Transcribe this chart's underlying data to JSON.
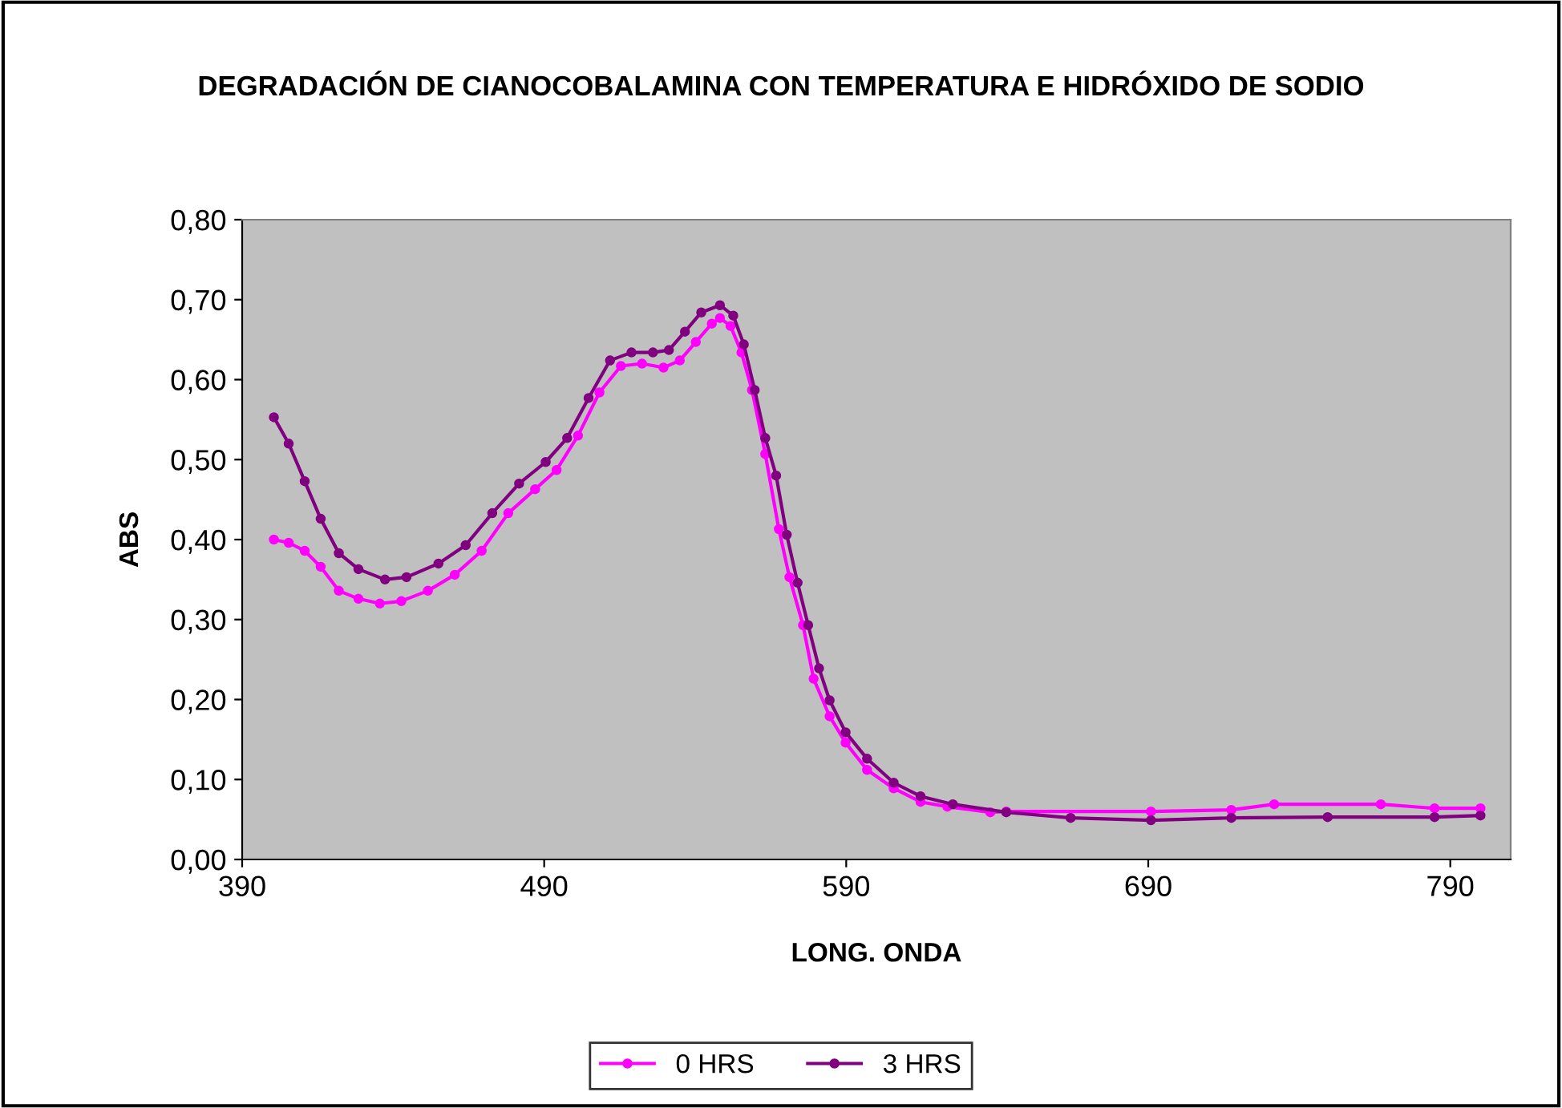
{
  "chart_data": {
    "type": "line",
    "title": "DEGRADACIÓN DE CIANOCOBALAMINA CON TEMPERATURA E HIDRÓXIDO DE SODIO",
    "xlabel": "LONG. ONDA",
    "ylabel": "ABS",
    "xlim": [
      390,
      810
    ],
    "xticks": [
      390,
      490,
      590,
      690,
      790
    ],
    "ylim": [
      0,
      0.8
    ],
    "yticks": [
      {
        "value": 0,
        "label": "0,00"
      },
      {
        "value": 0.1,
        "label": "0,10"
      },
      {
        "value": 0.2,
        "label": "0,20"
      },
      {
        "value": 0.3,
        "label": "0,30"
      },
      {
        "value": 0.4,
        "label": "0,40"
      },
      {
        "value": 0.5,
        "label": "0,50"
      },
      {
        "value": 0.6,
        "label": "0,60"
      },
      {
        "value": 0.7,
        "label": "0,70"
      },
      {
        "value": 0.8,
        "label": "0,80"
      }
    ],
    "grid": false,
    "legend": "bottom",
    "marker": "circle",
    "line_style": "solid",
    "series": [
      {
        "name": "0 HRS",
        "color": "#ff00ff",
        "x": [
          400.5,
          405.4,
          410.7,
          416,
          422,
          428.5,
          435.6,
          442.7,
          451.5,
          460.4,
          469.3,
          478.1,
          487,
          494.1,
          501.2,
          508.3,
          515.4,
          522.4,
          529.5,
          534.9,
          540.2,
          545.5,
          548.2,
          551.7,
          555.3,
          558.8,
          563.2,
          567.7,
          571.2,
          575.7,
          579.2,
          584.5,
          589.8,
          596.9,
          605.7,
          614.6,
          623.5,
          637.7,
          643,
          690.9,
          717.5,
          731.7,
          767,
          784.8,
          800
        ],
        "values": [
          0.4,
          0.396,
          0.386,
          0.366,
          0.336,
          0.326,
          0.32,
          0.323,
          0.336,
          0.356,
          0.386,
          0.433,
          0.463,
          0.487,
          0.53,
          0.584,
          0.617,
          0.62,
          0.615,
          0.624,
          0.647,
          0.67,
          0.677,
          0.667,
          0.634,
          0.587,
          0.507,
          0.413,
          0.353,
          0.293,
          0.226,
          0.179,
          0.146,
          0.112,
          0.089,
          0.072,
          0.066,
          0.059,
          0.06,
          0.06,
          0.062,
          0.069,
          0.069,
          0.064,
          0.064
        ]
      },
      {
        "name": "3 HRS",
        "color": "#800080",
        "x": [
          400.5,
          405.4,
          410.7,
          416,
          422,
          428.5,
          437.3,
          444.4,
          455,
          464,
          472.8,
          481.7,
          490.5,
          497.6,
          504.7,
          511.8,
          518.9,
          526,
          531.3,
          536.6,
          542,
          548.2,
          552.6,
          556.1,
          559.7,
          563.2,
          566.8,
          570.3,
          573.9,
          577.4,
          581,
          584.5,
          589.8,
          596.9,
          605.7,
          614.6,
          625.3,
          643,
          664.3,
          690.9,
          717.5,
          749.4,
          784.8,
          800
        ],
        "values": [
          0.553,
          0.52,
          0.473,
          0.426,
          0.383,
          0.363,
          0.35,
          0.353,
          0.37,
          0.393,
          0.433,
          0.47,
          0.497,
          0.527,
          0.577,
          0.624,
          0.634,
          0.634,
          0.637,
          0.66,
          0.684,
          0.693,
          0.68,
          0.644,
          0.587,
          0.527,
          0.48,
          0.406,
          0.346,
          0.293,
          0.239,
          0.199,
          0.159,
          0.126,
          0.096,
          0.079,
          0.069,
          0.059,
          0.052,
          0.049,
          0.052,
          0.053,
          0.053,
          0.055
        ]
      }
    ]
  }
}
